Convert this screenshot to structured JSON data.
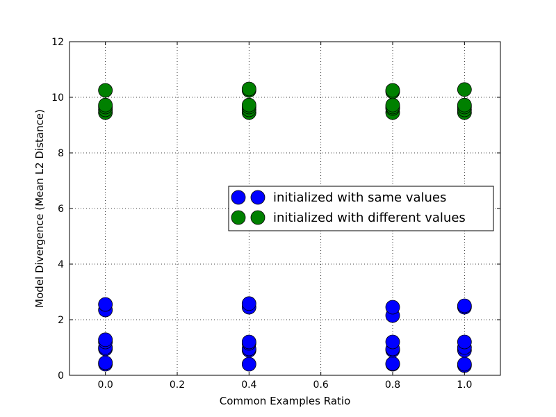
{
  "chart_data": {
    "type": "scatter",
    "title": "",
    "xlabel": "Common Examples Ratio",
    "ylabel": "Model Divergence (Mean L2 Distance)",
    "xlim": [
      -0.1,
      1.1
    ],
    "ylim": [
      0,
      12
    ],
    "xticks": [
      0.0,
      0.2,
      0.4,
      0.6,
      0.8,
      1.0
    ],
    "xtick_labels": [
      "0.0",
      "0.2",
      "0.4",
      "0.6",
      "0.8",
      "1.0"
    ],
    "yticks": [
      0,
      2,
      4,
      6,
      8,
      10,
      12
    ],
    "ytick_labels": [
      "0",
      "2",
      "4",
      "6",
      "8",
      "10",
      "12"
    ],
    "grid": true,
    "legend_position": "center-right",
    "series": [
      {
        "name": "initialized with same values",
        "color": "#0000ff",
        "points": [
          [
            0.0,
            0.4
          ],
          [
            0.0,
            0.45
          ],
          [
            0.0,
            0.95
          ],
          [
            0.0,
            1.0
          ],
          [
            0.0,
            1.2
          ],
          [
            0.0,
            1.28
          ],
          [
            0.0,
            2.35
          ],
          [
            0.0,
            2.55
          ],
          [
            0.4,
            0.4
          ],
          [
            0.4,
            0.9
          ],
          [
            0.4,
            0.95
          ],
          [
            0.4,
            1.15
          ],
          [
            0.4,
            1.2
          ],
          [
            0.4,
            2.45
          ],
          [
            0.4,
            2.58
          ],
          [
            0.8,
            0.4
          ],
          [
            0.8,
            0.42
          ],
          [
            0.8,
            0.9
          ],
          [
            0.8,
            0.95
          ],
          [
            0.8,
            1.2
          ],
          [
            0.8,
            2.15
          ],
          [
            0.8,
            2.45
          ],
          [
            1.0,
            0.35
          ],
          [
            1.0,
            0.4
          ],
          [
            1.0,
            0.9
          ],
          [
            1.0,
            1.0
          ],
          [
            1.0,
            1.2
          ],
          [
            1.0,
            2.45
          ],
          [
            1.0,
            2.5
          ]
        ]
      },
      {
        "name": "initialized with different values",
        "color": "#008000",
        "points": [
          [
            0.0,
            9.45
          ],
          [
            0.0,
            9.55
          ],
          [
            0.0,
            9.65
          ],
          [
            0.0,
            9.72
          ],
          [
            0.0,
            10.25
          ],
          [
            0.4,
            9.45
          ],
          [
            0.4,
            9.55
          ],
          [
            0.4,
            9.65
          ],
          [
            0.4,
            9.72
          ],
          [
            0.4,
            10.25
          ],
          [
            0.4,
            10.3
          ],
          [
            0.8,
            9.45
          ],
          [
            0.8,
            9.6
          ],
          [
            0.8,
            9.65
          ],
          [
            0.8,
            9.72
          ],
          [
            0.8,
            10.2
          ],
          [
            0.8,
            10.25
          ],
          [
            1.0,
            9.45
          ],
          [
            1.0,
            9.55
          ],
          [
            1.0,
            9.65
          ],
          [
            1.0,
            9.72
          ],
          [
            1.0,
            10.28
          ]
        ]
      }
    ]
  }
}
